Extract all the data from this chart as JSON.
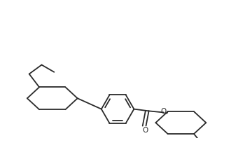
{
  "background_color": "#ffffff",
  "line_color": "#2a2a2a",
  "line_width": 1.3,
  "fig_width": 3.3,
  "fig_height": 2.34,
  "dpi": 100
}
